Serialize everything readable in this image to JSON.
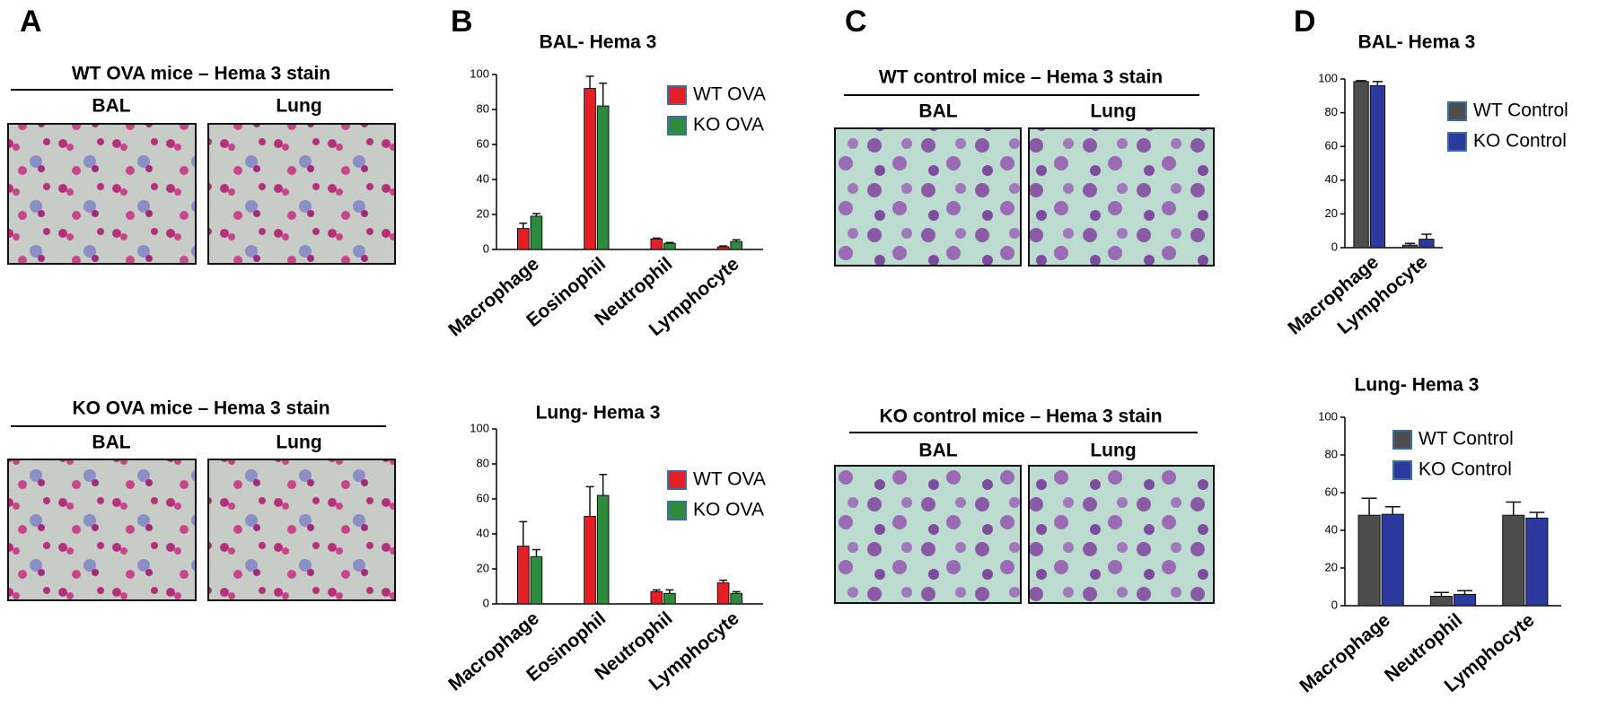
{
  "panel_labels": [
    "A",
    "B",
    "C",
    "D"
  ],
  "micrographs": [
    {
      "title": "WT OVA mice – Hema 3 stain",
      "columns": [
        "BAL",
        "Lung"
      ]
    },
    {
      "title": "KO OVA mice – Hema 3 stain",
      "columns": [
        "BAL",
        "Lung"
      ]
    },
    {
      "title": "WT control mice – Hema 3 stain",
      "columns": [
        "BAL",
        "Lung"
      ]
    },
    {
      "title": "KO control mice – Hema 3 stain",
      "columns": [
        "BAL",
        "Lung"
      ]
    }
  ],
  "chart_data": [
    {
      "type": "bar",
      "title": "BAL- Hema 3",
      "categories": [
        "Macrophage",
        "Eosinophil",
        "Neutrophil",
        "Lymphocyte"
      ],
      "series": [
        {
          "name": "WT OVA",
          "color": "#e41f26",
          "values": [
            12,
            92,
            6,
            1.5
          ],
          "errors": [
            3,
            7,
            0.5,
            0.5
          ]
        },
        {
          "name": "KO OVA",
          "color": "#2e8a3c",
          "values": [
            19,
            82,
            3.5,
            4.5
          ],
          "errors": [
            1.5,
            13,
            0.5,
            1
          ]
        }
      ],
      "ylim": [
        0,
        100
      ],
      "yticks": [
        0,
        20,
        40,
        60,
        80,
        100
      ]
    },
    {
      "type": "bar",
      "title": "Lung- Hema 3",
      "categories": [
        "Macrophage",
        "Eosinophil",
        "Neutrophil",
        "Lymphocyte"
      ],
      "series": [
        {
          "name": "WT OVA",
          "color": "#e41f26",
          "values": [
            33,
            50,
            7,
            12
          ],
          "errors": [
            14,
            17,
            1,
            1.5
          ]
        },
        {
          "name": "KO OVA",
          "color": "#2e8a3c",
          "values": [
            27,
            62,
            6,
            6
          ],
          "errors": [
            4,
            12,
            2,
            1
          ]
        }
      ],
      "ylim": [
        0,
        100
      ],
      "yticks": [
        0,
        20,
        40,
        60,
        80,
        100
      ]
    },
    {
      "type": "bar",
      "title": "BAL- Hema 3",
      "categories": [
        "Macrophage",
        "Lymphocyte"
      ],
      "series": [
        {
          "name": "WT Control",
          "color": "#4d4d4d",
          "values": [
            98.5,
            1.5
          ],
          "errors": [
            0.5,
            1
          ]
        },
        {
          "name": "KO Control",
          "color": "#2b3a9c",
          "values": [
            96,
            5
          ],
          "errors": [
            2.5,
            3
          ]
        }
      ],
      "ylim": [
        0,
        100
      ],
      "yticks": [
        0,
        20,
        40,
        60,
        80,
        100
      ]
    },
    {
      "type": "bar",
      "title": "Lung- Hema 3",
      "categories": [
        "Macrophage",
        "Neutrophil",
        "Lymphocyte"
      ],
      "series": [
        {
          "name": "WT Control",
          "color": "#4d4d4d",
          "values": [
            48,
            5,
            48
          ],
          "errors": [
            9,
            2,
            7
          ]
        },
        {
          "name": "KO Control",
          "color": "#2b3a9c",
          "values": [
            48.5,
            6,
            46.5
          ],
          "errors": [
            4,
            2,
            3
          ]
        }
      ],
      "ylim": [
        0,
        100
      ],
      "yticks": [
        0,
        20,
        40,
        60,
        80,
        100
      ]
    }
  ]
}
